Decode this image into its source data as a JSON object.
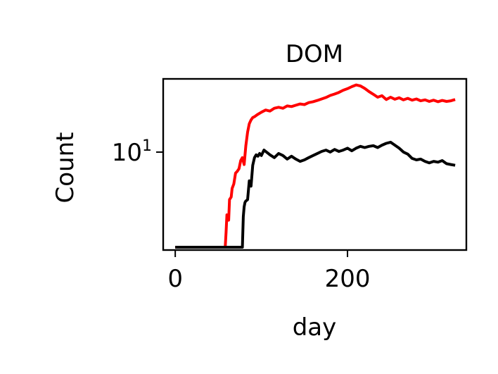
{
  "chart_data": {
    "type": "line",
    "title": "DOM",
    "xlabel": "day",
    "ylabel": "Count",
    "xscale": "linear",
    "yscale": "log",
    "xlim": [
      -14,
      338
    ],
    "ylim": [
      2.3,
      30
    ],
    "grid": false,
    "legend": "none",
    "x_ticks": [
      {
        "value": 0,
        "label": "0"
      },
      {
        "value": 200,
        "label": "200"
      }
    ],
    "y_ticks": [
      {
        "value": 10,
        "base": "10",
        "exp": "1"
      }
    ],
    "series": [
      {
        "color": "#ff0000",
        "x": [
          0,
          58,
          59,
          60,
          62,
          63,
          65,
          66,
          68,
          70,
          72,
          74,
          76,
          78,
          80,
          82,
          84,
          86,
          88,
          90,
          92,
          95,
          100,
          105,
          110,
          115,
          120,
          125,
          130,
          135,
          140,
          145,
          150,
          155,
          160,
          165,
          170,
          175,
          180,
          185,
          190,
          195,
          200,
          205,
          210,
          215,
          220,
          225,
          230,
          235,
          240,
          245,
          250,
          255,
          260,
          265,
          270,
          275,
          280,
          285,
          290,
          295,
          300,
          305,
          310,
          315,
          320,
          325
        ],
        "y": [
          2.4,
          2.4,
          3.0,
          3.9,
          3.6,
          4.9,
          5.1,
          5.8,
          6.2,
          7.3,
          7.5,
          7.8,
          8.8,
          9.2,
          8.3,
          11.0,
          13.5,
          15.3,
          16.2,
          16.8,
          17.0,
          17.5,
          18.2,
          18.8,
          18.5,
          19.3,
          19.6,
          19.3,
          20.0,
          19.8,
          20.2,
          20.6,
          20.4,
          21.0,
          21.3,
          21.7,
          22.2,
          22.7,
          23.4,
          23.9,
          24.5,
          25.3,
          25.9,
          26.7,
          27.4,
          27.0,
          26.0,
          24.8,
          23.8,
          22.8,
          23.3,
          22.0,
          22.8,
          22.1,
          22.6,
          21.9,
          22.4,
          21.8,
          22.2,
          21.6,
          21.9,
          21.4,
          21.8,
          21.3,
          21.7,
          21.4,
          21.6,
          22.0
        ]
      },
      {
        "color": "#000000",
        "x": [
          0,
          78,
          79,
          80,
          81,
          82,
          84,
          86,
          88,
          90,
          92,
          94,
          96,
          98,
          100,
          103,
          106,
          110,
          115,
          120,
          125,
          130,
          135,
          140,
          145,
          150,
          155,
          160,
          165,
          170,
          175,
          180,
          185,
          190,
          195,
          200,
          205,
          210,
          215,
          220,
          225,
          230,
          235,
          240,
          245,
          250,
          255,
          260,
          265,
          270,
          275,
          280,
          285,
          290,
          295,
          300,
          305,
          310,
          315,
          320,
          325
        ],
        "y": [
          2.4,
          2.4,
          3.8,
          4.4,
          4.7,
          4.8,
          4.9,
          6.5,
          6.0,
          8.2,
          9.2,
          9.6,
          9.4,
          9.8,
          9.5,
          10.3,
          10.0,
          9.6,
          9.2,
          9.8,
          9.5,
          9.0,
          9.4,
          9.0,
          8.7,
          8.9,
          9.2,
          9.5,
          9.8,
          10.1,
          10.3,
          10.0,
          10.4,
          10.1,
          10.3,
          10.6,
          10.2,
          10.6,
          10.9,
          10.7,
          10.9,
          11.0,
          10.7,
          11.1,
          11.4,
          11.6,
          11.1,
          10.6,
          10.0,
          9.7,
          9.1,
          8.9,
          9.0,
          8.7,
          8.5,
          8.7,
          8.6,
          8.8,
          8.4,
          8.3,
          8.2
        ]
      }
    ]
  }
}
